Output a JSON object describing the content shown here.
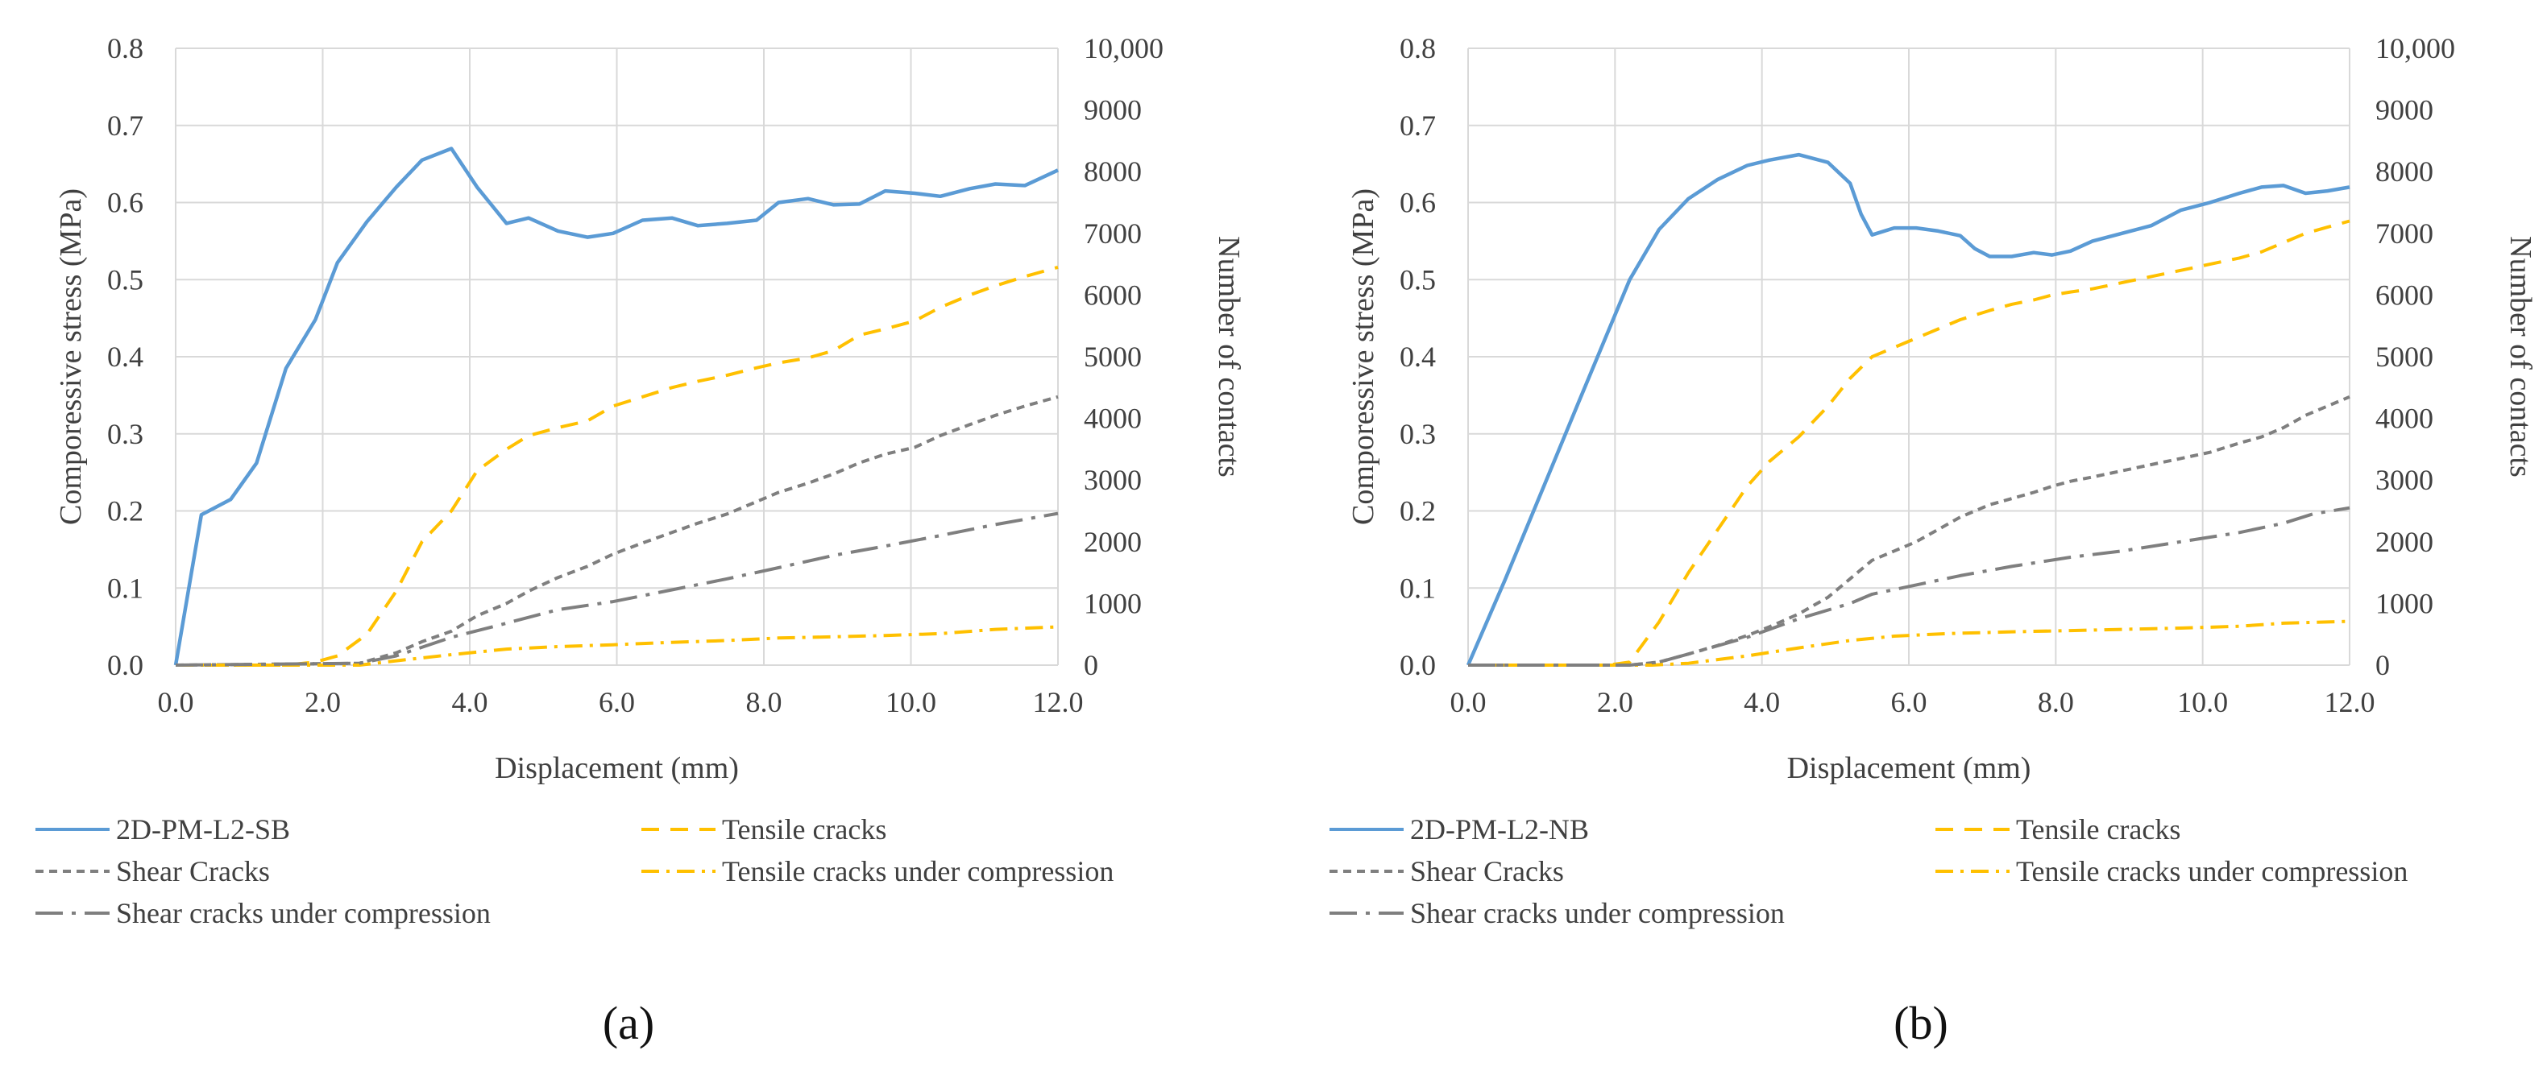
{
  "figure": {
    "panels": [
      "(a)",
      "(b)"
    ]
  },
  "chart_data": [
    {
      "type": "line",
      "panel_label": "(a)",
      "xlabel": "Displacement (mm)",
      "ylabel": "Comporessive stress (MPa)",
      "y2label": "Number of contacts",
      "xlim": [
        0,
        12
      ],
      "ylim": [
        0,
        0.8
      ],
      "y2lim": [
        0,
        10000
      ],
      "xticks": [
        "0.0",
        "2.0",
        "4.0",
        "6.0",
        "8.0",
        "10.0",
        "12.0"
      ],
      "yticks": [
        "0.0",
        "0.1",
        "0.2",
        "0.3",
        "0.4",
        "0.5",
        "0.6",
        "0.7",
        "0.8"
      ],
      "y2ticks": [
        "0",
        "1000",
        "2000",
        "3000",
        "4000",
        "5000",
        "6000",
        "7000",
        "8000",
        "9000",
        "10,000"
      ],
      "grid": true,
      "legend": "bottom",
      "series": [
        {
          "name": "2D-PM-L2-SB",
          "axis": "left",
          "color": "#5b9bd5",
          "dash": "solid",
          "x": [
            0,
            0.35,
            0.75,
            1.1,
            1.5,
            1.9,
            2.2,
            2.6,
            3.0,
            3.35,
            3.75,
            4.1,
            4.5,
            4.8,
            5.2,
            5.6,
            5.95,
            6.35,
            6.75,
            7.1,
            7.5,
            7.9,
            8.2,
            8.6,
            8.95,
            9.3,
            9.65,
            10.05,
            10.4,
            10.8,
            11.15,
            11.55,
            12.0
          ],
          "y": [
            0.0,
            0.195,
            0.215,
            0.262,
            0.385,
            0.448,
            0.522,
            0.575,
            0.62,
            0.655,
            0.67,
            0.62,
            0.573,
            0.58,
            0.563,
            0.555,
            0.56,
            0.577,
            0.58,
            0.57,
            0.573,
            0.577,
            0.6,
            0.605,
            0.597,
            0.598,
            0.615,
            0.612,
            0.608,
            0.618,
            0.624,
            0.622,
            0.642
          ]
        },
        {
          "name": "Tensile cracks",
          "axis": "right",
          "color": "#ffc000",
          "dash": "dash",
          "x": [
            0,
            1.5,
            1.9,
            2.2,
            2.6,
            3.0,
            3.35,
            3.75,
            4.1,
            4.5,
            4.8,
            5.2,
            5.6,
            5.95,
            6.35,
            6.75,
            7.1,
            7.5,
            7.9,
            8.2,
            8.6,
            8.95,
            9.3,
            9.65,
            10.05,
            10.4,
            10.8,
            11.15,
            11.55,
            12.0
          ],
          "y": [
            0,
            0,
            50,
            150,
            500,
            1200,
            2000,
            2500,
            3150,
            3500,
            3720,
            3850,
            3960,
            4200,
            4350,
            4500,
            4600,
            4700,
            4820,
            4900,
            4980,
            5100,
            5350,
            5450,
            5580,
            5800,
            6000,
            6150,
            6300,
            6450
          ]
        },
        {
          "name": "Shear Cracks",
          "axis": "right",
          "color": "#7f7f7f",
          "dash": "shortdash",
          "x": [
            0,
            2.5,
            3.0,
            3.35,
            3.75,
            4.1,
            4.5,
            4.8,
            5.2,
            5.6,
            5.95,
            6.35,
            6.75,
            7.1,
            7.5,
            7.9,
            8.2,
            8.6,
            8.95,
            9.3,
            9.65,
            10.05,
            10.4,
            10.8,
            11.15,
            11.55,
            12.0
          ],
          "y": [
            0,
            30,
            200,
            380,
            550,
            800,
            1000,
            1200,
            1420,
            1600,
            1800,
            1980,
            2150,
            2300,
            2450,
            2650,
            2800,
            2950,
            3100,
            3280,
            3420,
            3530,
            3720,
            3900,
            4050,
            4200,
            4350
          ]
        },
        {
          "name": "Tensile cracks under compression",
          "axis": "right",
          "color": "#ffc000",
          "dash": "dashdot",
          "x": [
            0,
            2.5,
            3.0,
            3.75,
            4.5,
            5.2,
            5.95,
            6.75,
            7.5,
            8.2,
            8.95,
            9.65,
            10.4,
            11.15,
            12.0
          ],
          "y": [
            0,
            0,
            70,
            170,
            260,
            300,
            330,
            370,
            400,
            440,
            460,
            480,
            510,
            580,
            620
          ]
        },
        {
          "name": "Shear cracks under compression",
          "axis": "right",
          "color": "#7f7f7f",
          "dash": "longdashdot",
          "x": [
            0,
            2.5,
            3.0,
            3.75,
            4.5,
            5.2,
            5.95,
            6.75,
            7.5,
            8.2,
            8.95,
            9.65,
            10.4,
            11.15,
            12.0
          ],
          "y": [
            0,
            30,
            150,
            450,
            680,
            900,
            1030,
            1220,
            1400,
            1580,
            1780,
            1930,
            2100,
            2280,
            2460
          ]
        }
      ]
    },
    {
      "type": "line",
      "panel_label": "(b)",
      "xlabel": "Displacement (mm)",
      "ylabel": "Comporessive stress (MPa)",
      "y2label": "Number of contacts",
      "xlim": [
        0,
        12
      ],
      "ylim": [
        0,
        0.8
      ],
      "y2lim": [
        0,
        10000
      ],
      "xticks": [
        "0.0",
        "2.0",
        "4.0",
        "6.0",
        "8.0",
        "10.0",
        "12.0"
      ],
      "yticks": [
        "0.0",
        "0.1",
        "0.2",
        "0.3",
        "0.4",
        "0.5",
        "0.6",
        "0.7",
        "0.8"
      ],
      "y2ticks": [
        "0",
        "1000",
        "2000",
        "3000",
        "4000",
        "5000",
        "6000",
        "7000",
        "8000",
        "9000",
        "10,000"
      ],
      "grid": true,
      "legend": "bottom",
      "series": [
        {
          "name": "2D-PM-L2-NB",
          "axis": "left",
          "color": "#5b9bd5",
          "dash": "solid",
          "x": [
            0,
            0.5,
            1.0,
            1.5,
            2.2,
            2.6,
            3.0,
            3.4,
            3.8,
            4.1,
            4.5,
            4.9,
            5.2,
            5.35,
            5.5,
            5.8,
            6.1,
            6.4,
            6.7,
            6.9,
            7.1,
            7.4,
            7.7,
            7.95,
            8.2,
            8.5,
            8.9,
            9.3,
            9.7,
            10.1,
            10.5,
            10.8,
            11.1,
            11.4,
            11.7,
            12.0
          ],
          "y": [
            0.0,
            0.11,
            0.225,
            0.34,
            0.5,
            0.565,
            0.605,
            0.63,
            0.648,
            0.655,
            0.662,
            0.652,
            0.625,
            0.585,
            0.558,
            0.567,
            0.567,
            0.563,
            0.557,
            0.54,
            0.53,
            0.53,
            0.535,
            0.532,
            0.537,
            0.55,
            0.56,
            0.57,
            0.59,
            0.6,
            0.612,
            0.62,
            0.622,
            0.612,
            0.615,
            0.62
          ]
        },
        {
          "name": "Tensile cracks",
          "axis": "right",
          "color": "#ffc000",
          "dash": "dash",
          "x": [
            0,
            1.9,
            2.2,
            2.6,
            3.0,
            3.4,
            3.8,
            4.1,
            4.5,
            4.9,
            5.2,
            5.5,
            5.8,
            6.1,
            6.4,
            6.7,
            7.1,
            7.4,
            7.7,
            7.95,
            8.2,
            8.5,
            8.9,
            9.3,
            9.7,
            10.1,
            10.5,
            10.8,
            11.1,
            11.4,
            11.7,
            12.0
          ],
          "y": [
            0,
            0,
            50,
            700,
            1500,
            2200,
            2900,
            3300,
            3700,
            4200,
            4650,
            5000,
            5150,
            5300,
            5450,
            5600,
            5750,
            5850,
            5920,
            6000,
            6050,
            6100,
            6200,
            6300,
            6400,
            6500,
            6600,
            6700,
            6850,
            7000,
            7100,
            7200
          ]
        },
        {
          "name": "Shear Cracks",
          "axis": "right",
          "color": "#7f7f7f",
          "dash": "shortdash",
          "x": [
            0,
            2.2,
            2.6,
            3.0,
            3.4,
            3.8,
            4.1,
            4.5,
            4.9,
            5.2,
            5.5,
            5.8,
            6.1,
            6.4,
            6.7,
            7.1,
            7.4,
            7.7,
            7.95,
            8.2,
            8.5,
            8.9,
            9.3,
            9.7,
            10.1,
            10.5,
            10.8,
            11.1,
            11.4,
            11.7,
            12.0
          ],
          "y": [
            0,
            0,
            50,
            180,
            320,
            480,
            620,
            830,
            1100,
            1400,
            1700,
            1850,
            2000,
            2200,
            2400,
            2600,
            2700,
            2800,
            2900,
            2980,
            3050,
            3150,
            3250,
            3350,
            3450,
            3600,
            3700,
            3850,
            4050,
            4200,
            4350
          ]
        },
        {
          "name": "Tensile cracks under compression",
          "axis": "right",
          "color": "#ffc000",
          "dash": "dashdot",
          "x": [
            0,
            2.5,
            3.0,
            3.8,
            4.5,
            5.2,
            5.8,
            6.5,
            7.4,
            8.2,
            8.9,
            9.7,
            10.5,
            11.1,
            12.0
          ],
          "y": [
            0,
            0,
            30,
            150,
            280,
            400,
            470,
            510,
            540,
            560,
            580,
            600,
            630,
            680,
            710
          ]
        },
        {
          "name": "Shear cracks under compression",
          "axis": "right",
          "color": "#7f7f7f",
          "dash": "longdashdot",
          "x": [
            0,
            2.2,
            2.6,
            3.0,
            3.8,
            4.5,
            5.2,
            5.5,
            6.1,
            6.7,
            7.4,
            8.2,
            8.9,
            9.7,
            10.5,
            11.1,
            11.5,
            12.0
          ],
          "y": [
            0,
            0,
            50,
            180,
            450,
            750,
            1000,
            1150,
            1300,
            1450,
            1600,
            1750,
            1850,
            2000,
            2150,
            2300,
            2450,
            2550
          ]
        }
      ]
    }
  ]
}
